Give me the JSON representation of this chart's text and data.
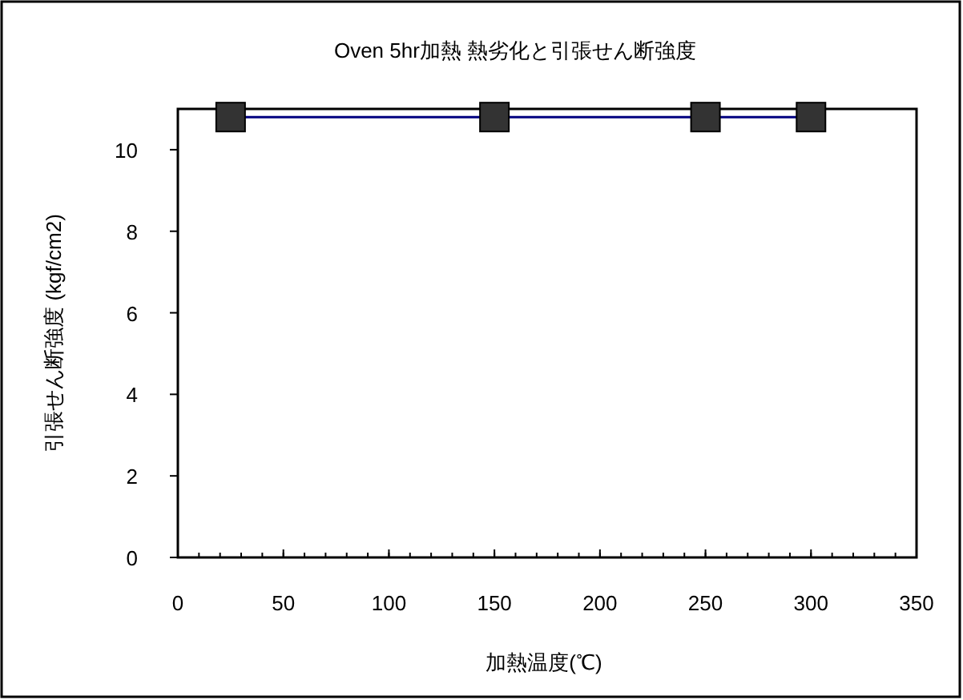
{
  "chart_data": {
    "type": "line",
    "title": "Oven 5hr加熱 熱劣化と引張せん断強度",
    "xlabel": "加熱温度(℃)",
    "ylabel": "引張せん断強度 (kgf/cm2)",
    "x": [
      25,
      150,
      250,
      300
    ],
    "series": [
      {
        "color": "#000080",
        "values": [
          10.8,
          10.8,
          10.8,
          10.8
        ]
      }
    ],
    "marker": "square",
    "xlim": [
      0,
      350
    ],
    "xticks": [
      0,
      50,
      100,
      150,
      200,
      250,
      300,
      350
    ],
    "ylim": [
      0,
      11
    ],
    "yticks": [
      0,
      2,
      4,
      6,
      8,
      10
    ],
    "grid": false
  }
}
